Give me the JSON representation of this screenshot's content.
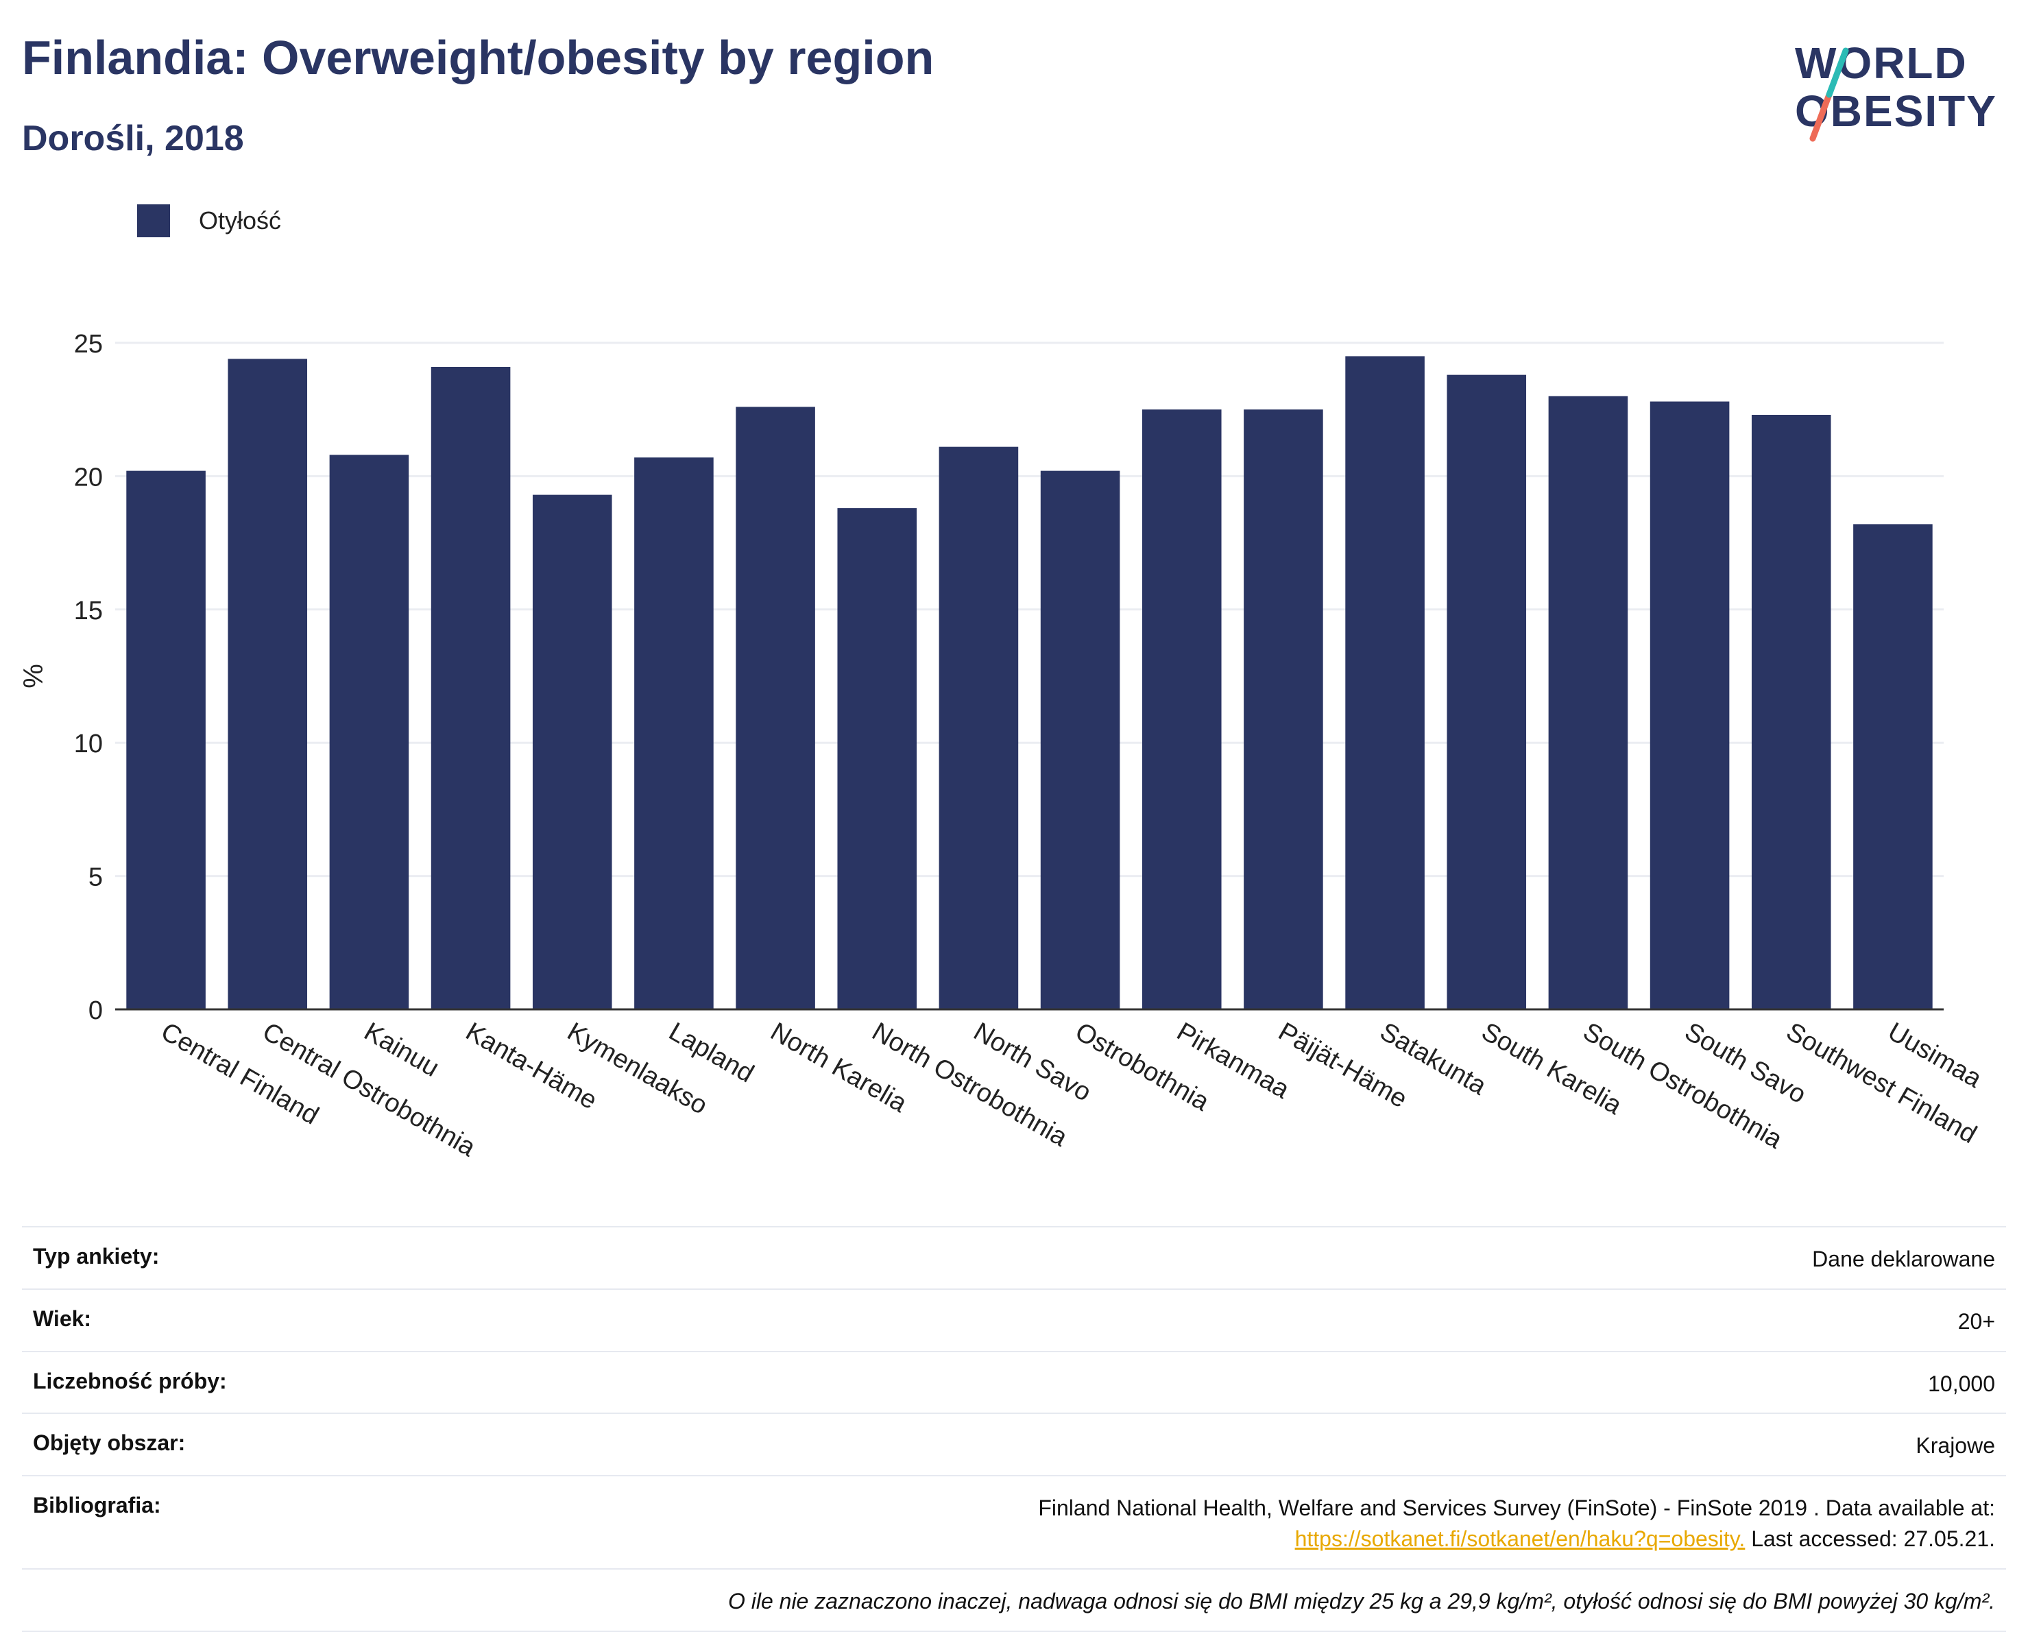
{
  "header": {
    "title": "Finlandia: Overweight/obesity by region",
    "subtitle": "Dorośli, 2018"
  },
  "logo": {
    "line1": "WORLD",
    "line2": "OBESITY"
  },
  "colors": {
    "bar": "#2a3563",
    "accent_teal": "#2bbbb5",
    "accent_coral": "#ee6b57",
    "link": "#e8a800"
  },
  "chart_data": {
    "type": "bar",
    "categories": [
      "Central Finland",
      "Central Ostrobothnia",
      "Kainuu",
      "Kanta-Häme",
      "Kymenlaakso",
      "Lapland",
      "North Karelia",
      "North Ostrobothnia",
      "North Savo",
      "Ostrobothnia",
      "Pirkanmaa",
      "Päijät-Häme",
      "Satakunta",
      "South Karelia",
      "South Ostrobothnia",
      "South Savo",
      "Southwest Finland",
      "Uusimaa"
    ],
    "series": [
      {
        "name": "Otyłość",
        "values": [
          20.2,
          24.4,
          20.8,
          24.1,
          19.3,
          20.7,
          22.6,
          18.8,
          21.1,
          20.2,
          22.5,
          22.5,
          24.5,
          23.8,
          23.0,
          22.8,
          22.3,
          18.2
        ]
      }
    ],
    "ylabel": "%",
    "xlabel": "",
    "ylim": [
      0,
      25
    ],
    "yticks": [
      0,
      5,
      10,
      15,
      20,
      25
    ],
    "grid": true,
    "legend_position": "top-left"
  },
  "info": {
    "rows": [
      {
        "key": "Typ ankiety:",
        "value": "Dane deklarowane"
      },
      {
        "key": "Wiek:",
        "value": "20+"
      },
      {
        "key": "Liczebność próby:",
        "value": "10,000"
      },
      {
        "key": "Objęty obszar:",
        "value": "Krajowe"
      }
    ],
    "bibliography": {
      "key": "Bibliografia:",
      "text1": "Finland National Health, Welfare and Services Survey (FinSote) - FinSote 2019 . Data available at:",
      "link": "https://sotkanet.fi/sotkanet/en/haku?q=obesity.",
      "text2": " Last accessed: 27.05.21."
    },
    "note": "O ile nie zaznaczono inaczej, nadwaga odnosi się do BMI między 25 kg a 29,9 kg/m², otyłość odnosi się do BMI powyżej 30 kg/m²."
  }
}
